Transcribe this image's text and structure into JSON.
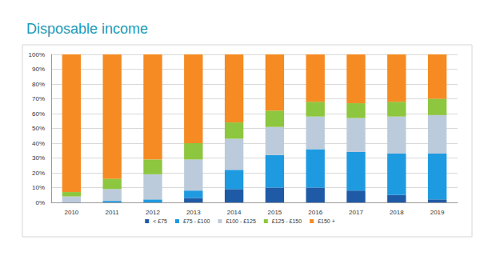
{
  "chart_data": {
    "type": "bar",
    "title": "Disposable income",
    "stacked": true,
    "grid": true,
    "legend": "bottom",
    "categories": [
      "2010",
      "2011",
      "2012",
      "2013",
      "2014",
      "2015",
      "2016",
      "2017",
      "2018",
      "2019"
    ],
    "series": [
      {
        "name": "< £75",
        "color": "#1f5aa6",
        "values": [
          0,
          0,
          0,
          3,
          9,
          10,
          10,
          8,
          5,
          2
        ]
      },
      {
        "name": "£75 - £100",
        "color": "#1e9ae0",
        "values": [
          0,
          1,
          2,
          5,
          13,
          22,
          26,
          26,
          28,
          31
        ]
      },
      {
        "name": "£100 - £125",
        "color": "#bccbdc",
        "values": [
          4,
          8,
          17,
          21,
          21,
          19,
          22,
          23,
          25,
          26
        ]
      },
      {
        "name": "£125 - £150",
        "color": "#8dc63f",
        "values": [
          3,
          7,
          10,
          11,
          11,
          11,
          10,
          10,
          10,
          11
        ]
      },
      {
        "name": "£150 +",
        "color": "#f58b22",
        "values": [
          93,
          84,
          71,
          60,
          46,
          38,
          32,
          33,
          32,
          30
        ]
      }
    ],
    "ylim": [
      0,
      100
    ],
    "yticks": [
      {
        "value": 0,
        "label": "0%"
      },
      {
        "value": 10,
        "label": "10%"
      },
      {
        "value": 20,
        "label": "20%"
      },
      {
        "value": 30,
        "label": "30%"
      },
      {
        "value": 40,
        "label": "40%"
      },
      {
        "value": 50,
        "label": "50%"
      },
      {
        "value": 60,
        "label": "60%"
      },
      {
        "value": 70,
        "label": "70%"
      },
      {
        "value": 80,
        "label": "80%"
      },
      {
        "value": 90,
        "label": "90%"
      },
      {
        "value": 100,
        "label": "100%"
      }
    ]
  }
}
